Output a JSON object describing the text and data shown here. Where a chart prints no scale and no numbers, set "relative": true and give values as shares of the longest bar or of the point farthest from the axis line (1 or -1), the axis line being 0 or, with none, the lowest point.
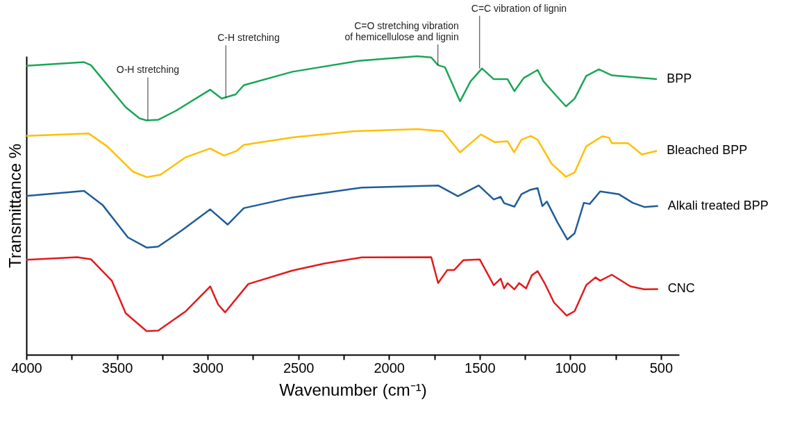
{
  "chart_data": {
    "type": "line",
    "relative": true,
    "xlabel": "Wavenumber (cm⁻¹)",
    "ylabel": "Transmittance %",
    "xlim": [
      4000,
      400
    ],
    "xticks": [
      4000,
      {
        "value": 3750,
        "label": null
      },
      3500,
      {
        "value": 3250,
        "label": null
      },
      3000,
      {
        "value": 2750,
        "label": null
      },
      2500,
      {
        "value": 2250,
        "label": null
      },
      2000,
      {
        "value": 1750,
        "label": null
      },
      1500,
      {
        "value": 1250,
        "label": null
      },
      1000,
      {
        "value": 750,
        "label": null
      },
      500
    ],
    "grid": false,
    "legend": false,
    "line_style": "solid",
    "marker": "none",
    "annotations": [
      {
        "text": "O-H stretching",
        "x": 3330,
        "y": 0.785
      },
      {
        "text": "C-H stretching",
        "x": 2900,
        "y": 0.86
      },
      {
        "text": "C=O stretching vibration\nof hemicellulose and lignin",
        "x": 1730,
        "y": 0.97
      },
      {
        "text": "C=C vibration of lignin",
        "x": 1500,
        "y": 0.959
      }
    ],
    "series": [
      {
        "name": "BPP",
        "color": "#1aa655",
        "x": [
          4000,
          3682,
          3644,
          3452,
          3376,
          3337,
          3273,
          3173,
          2986,
          2923,
          2846,
          2801,
          2533,
          2163,
          1844,
          1767,
          1729,
          1691,
          1608,
          1550,
          1487,
          1422,
          1346,
          1308,
          1257,
          1180,
          1148,
          1084,
          1024,
          976,
          912,
          842,
          771,
          656,
          522
        ],
        "values": [
          0.968,
          0.98,
          0.97,
          0.829,
          0.792,
          0.785,
          0.787,
          0.818,
          0.888,
          0.858,
          0.872,
          0.903,
          0.948,
          0.985,
          1,
          0.996,
          0.97,
          0.963,
          0.849,
          0.916,
          0.959,
          0.923,
          0.923,
          0.883,
          0.927,
          0.954,
          0.916,
          0.872,
          0.832,
          0.858,
          0.934,
          0.956,
          0.936,
          0.93,
          0.923
        ]
      },
      {
        "name": "Bleached BPP",
        "color": "#ffbf00",
        "x": [
          4000,
          3656,
          3554,
          3414,
          3337,
          3261,
          3120,
          2986,
          2910,
          2840,
          2801,
          2533,
          2188,
          1844,
          1703,
          1608,
          1493,
          1416,
          1346,
          1310,
          1269,
          1218,
          1180,
          1103,
          1024,
          976,
          912,
          824,
          786,
          771,
          682,
          605,
          522
        ],
        "values": [
          0.733,
          0.741,
          0.698,
          0.614,
          0.595,
          0.603,
          0.662,
          0.691,
          0.667,
          0.683,
          0.703,
          0.728,
          0.749,
          0.756,
          0.749,
          0.678,
          0.738,
          0.712,
          0.715,
          0.678,
          0.72,
          0.733,
          0.72,
          0.64,
          0.596,
          0.611,
          0.698,
          0.732,
          0.727,
          0.709,
          0.709,
          0.671,
          0.683
        ]
      },
      {
        "name": "Alkali treated BPP",
        "color": "#1f5c99",
        "x": [
          4000,
          3682,
          3580,
          3440,
          3337,
          3273,
          3146,
          2986,
          2890,
          2801,
          2533,
          2150,
          1729,
          1620,
          1505,
          1422,
          1384,
          1365,
          1308,
          1269,
          1218,
          1180,
          1154,
          1129,
          1071,
          1016,
          976,
          925,
          893,
          835,
          733,
          656,
          592,
          516
        ],
        "values": [
          0.532,
          0.549,
          0.502,
          0.393,
          0.359,
          0.362,
          0.415,
          0.487,
          0.436,
          0.491,
          0.527,
          0.56,
          0.567,
          0.531,
          0.567,
          0.52,
          0.529,
          0.508,
          0.496,
          0.538,
          0.553,
          0.558,
          0.498,
          0.513,
          0.444,
          0.386,
          0.407,
          0.509,
          0.505,
          0.547,
          0.538,
          0.509,
          0.495,
          0.498
        ]
      },
      {
        "name": "CNC",
        "color": "#e31a1c",
        "x": [
          4000,
          3720,
          3644,
          3529,
          3452,
          3337,
          3273,
          3120,
          2986,
          2942,
          2904,
          2776,
          2533,
          2354,
          2150,
          1767,
          1729,
          1678,
          1640,
          1589,
          1499,
          1422,
          1384,
          1365,
          1346,
          1308,
          1282,
          1244,
          1212,
          1180,
          1142,
          1090,
          1020,
          976,
          912,
          861,
          835,
          771,
          669,
          592,
          516
        ],
        "values": [
          0.318,
          0.327,
          0.32,
          0.248,
          0.139,
          0.079,
          0.081,
          0.146,
          0.229,
          0.168,
          0.142,
          0.237,
          0.282,
          0.306,
          0.326,
          0.327,
          0.24,
          0.284,
          0.284,
          0.317,
          0.319,
          0.233,
          0.255,
          0.222,
          0.24,
          0.219,
          0.24,
          0.222,
          0.266,
          0.28,
          0.24,
          0.175,
          0.131,
          0.146,
          0.233,
          0.259,
          0.248,
          0.268,
          0.229,
          0.219,
          0.22
        ]
      }
    ]
  }
}
